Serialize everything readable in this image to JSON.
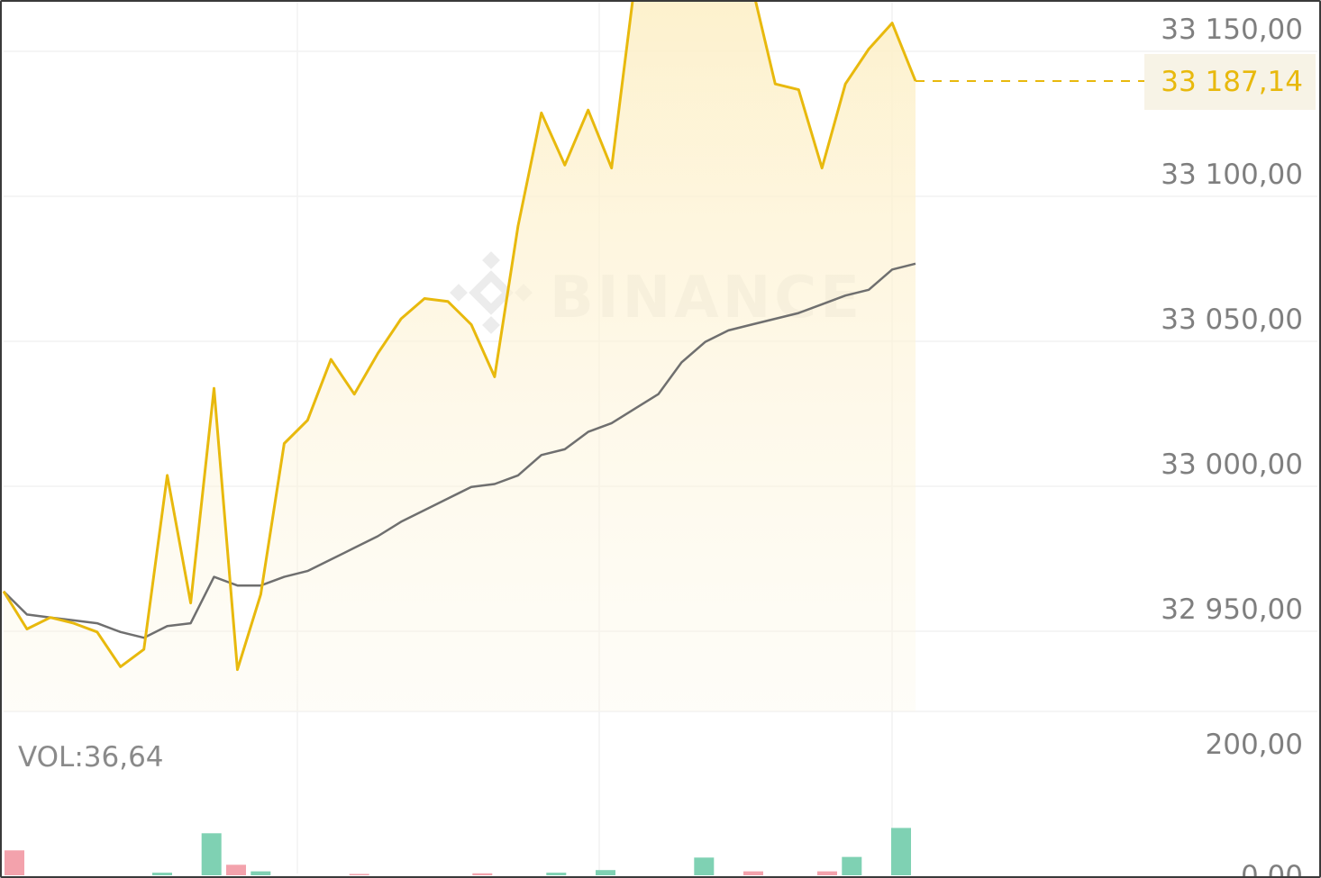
{
  "watermark": "BINANCE",
  "colors": {
    "price_line": "#e8b90d",
    "ma_line": "#6f6f6f",
    "vol_up": "#7fd1b3",
    "vol_down": "#f3a2ac",
    "grid": "#f2f2f2",
    "price_tag_bg": "#f7f3e6"
  },
  "chart_data": [
    {
      "type": "line",
      "title": "",
      "ylim": [
        32900,
        33165
      ],
      "y_ticks": [
        "33 150,00",
        "33 100,00",
        "33 050,00",
        "33 000,00",
        "32 950,00"
      ],
      "y_tick_values": [
        33150,
        33100,
        33050,
        33000,
        32950
      ],
      "last_price": 33187.14,
      "last_price_label": "33 187,14",
      "grid": true,
      "series": [
        {
          "role": "price",
          "values": [
            32956,
            32943,
            32947,
            32945,
            32942,
            32930,
            32936,
            32996,
            32952,
            33026,
            32929,
            32955,
            33007,
            33015,
            33036,
            33024,
            33038,
            33050,
            33057,
            33056,
            33048,
            33030,
            33082,
            33121,
            33103,
            33122,
            33102,
            33166,
            33165,
            33165,
            33165,
            33166,
            33165,
            33131,
            33129,
            33102,
            33131,
            33143,
            33152,
            33132
          ]
        },
        {
          "role": "moving_average",
          "values": [
            32956,
            32948,
            32947,
            32946,
            32945,
            32942,
            32940,
            32944,
            32945,
            32961,
            32958,
            32958,
            32961,
            32963,
            32967,
            32971,
            32975,
            32980,
            32984,
            32988,
            32992,
            32993,
            32996,
            33003,
            33005,
            33011,
            33014,
            33019,
            33024,
            33035,
            33042,
            33046,
            33048,
            33050,
            33052,
            33055,
            33058,
            33060,
            33067,
            33069
          ]
        }
      ]
    },
    {
      "type": "bar",
      "title": "",
      "label": "VOL:36,64",
      "ylim": [
        0,
        200
      ],
      "y_ticks": [
        "200,00",
        "0,00"
      ],
      "y_tick_values": [
        200,
        0
      ],
      "values": [
        38,
        0,
        0,
        0,
        0,
        0,
        4,
        0,
        64,
        16,
        6,
        0,
        0,
        0,
        2,
        0,
        0,
        0,
        0,
        3,
        0,
        0,
        4,
        0,
        8,
        0,
        0,
        0,
        27,
        0,
        6,
        0,
        0,
        6,
        28,
        0,
        72
      ],
      "directions": [
        "down",
        "up",
        "up",
        "up",
        "up",
        "up",
        "up",
        "up",
        "up",
        "down",
        "up",
        "up",
        "up",
        "up",
        "down",
        "up",
        "up",
        "up",
        "up",
        "down",
        "up",
        "up",
        "up",
        "up",
        "up",
        "up",
        "up",
        "up",
        "up",
        "up",
        "down",
        "up",
        "up",
        "down",
        "up",
        "up",
        "up"
      ]
    }
  ]
}
